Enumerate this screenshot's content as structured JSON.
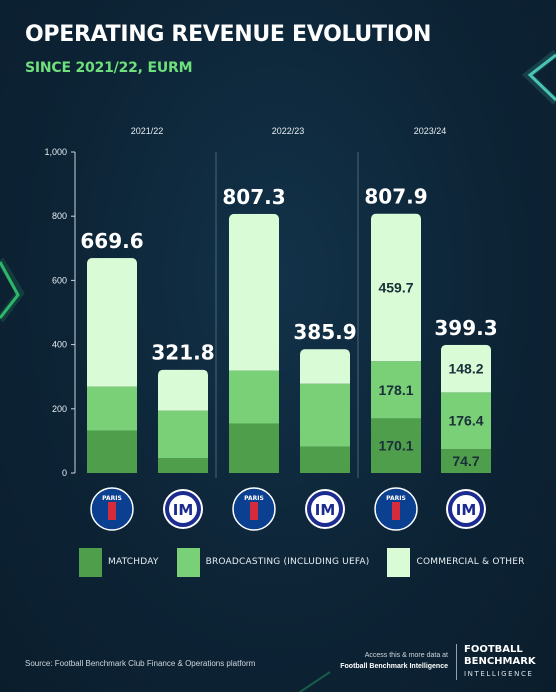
{
  "header": {
    "title": "OPERATING REVENUE EVOLUTION",
    "subtitle": "SINCE 2021/22, EURM"
  },
  "colors": {
    "matchday": "#4f9e4b",
    "broadcasting": "#79d076",
    "commercial": "#d9fbd6",
    "background": "#0d2436",
    "title": "#ffffff",
    "subtitle": "#6ee07b"
  },
  "club_logos": [
    {
      "icon": "psg-crest-icon",
      "text": "PARIS"
    },
    {
      "icon": "inter-crest-icon",
      "text": "IM"
    },
    {
      "icon": "psg-crest-icon",
      "text": "PARIS"
    },
    {
      "icon": "inter-crest-icon",
      "text": "IM"
    },
    {
      "icon": "psg-crest-icon",
      "text": "PARIS"
    },
    {
      "icon": "inter-crest-icon",
      "text": "IM"
    }
  ],
  "chart_data": {
    "type": "bar",
    "stacked": true,
    "groups": [
      "2021/22",
      "2022/23",
      "2023/24"
    ],
    "bars": [
      {
        "group": "2021/22",
        "logo": "psg-crest-icon",
        "total": 669.6,
        "segments": [
          132,
          137,
          400.6
        ],
        "segment_labels": [
          "",
          "",
          ""
        ]
      },
      {
        "group": "2021/22",
        "logo": "inter-crest-icon",
        "total": 321.8,
        "segments": [
          46,
          148,
          127.8
        ],
        "segment_labels": [
          "",
          "",
          ""
        ]
      },
      {
        "group": "2022/23",
        "logo": "psg-crest-icon",
        "total": 807.3,
        "segments": [
          154,
          165,
          488.3
        ],
        "segment_labels": [
          "",
          "",
          ""
        ]
      },
      {
        "group": "2022/23",
        "logo": "inter-crest-icon",
        "total": 385.9,
        "segments": [
          82,
          196,
          107.9
        ],
        "segment_labels": [
          "",
          "",
          ""
        ]
      },
      {
        "group": "2023/24",
        "logo": "psg-crest-icon",
        "total": 807.9,
        "segments": [
          170.1,
          178.1,
          459.7
        ],
        "segment_labels": [
          "170.1",
          "178.1",
          "459.7"
        ]
      },
      {
        "group": "2023/24",
        "logo": "inter-crest-icon",
        "total": 399.3,
        "segments": [
          74.7,
          176.4,
          148.2
        ],
        "segment_labels": [
          "74.7",
          "176.4",
          "148.2"
        ]
      }
    ],
    "series": [
      {
        "name": "MATCHDAY"
      },
      {
        "name": "BROADCASTING (INCLUDING UEFA)"
      },
      {
        "name": "COMMERCIAL & OTHER"
      }
    ],
    "y_ticks": [
      "0",
      "200",
      "400",
      "600",
      "800",
      "1,000"
    ],
    "ylim": [
      0,
      1000
    ],
    "grid": false,
    "legend_position": "bottom"
  },
  "footer": {
    "source": "Source: Football Benchmark Club Finance & Operations platform",
    "access_line1": "Access this & more data at",
    "access_line2": "Football Benchmark Intelligence",
    "brand_line1": "FOOTBALL",
    "brand_line2": "BENCHMARK",
    "brand_line3": "INTELLIGENCE"
  }
}
